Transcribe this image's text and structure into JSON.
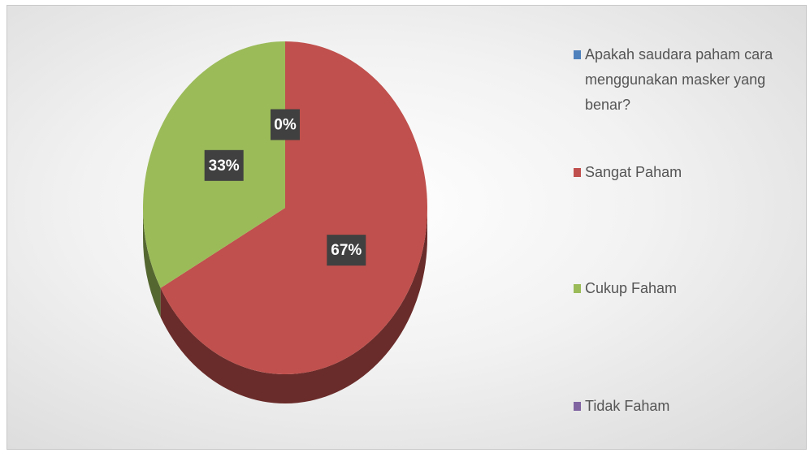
{
  "chart_data": {
    "type": "pie",
    "categories": [
      "Apakah saudara paham cara menggunakan masker yang benar?",
      "Sangat Paham",
      "Cukup Faham",
      "Tidak Faham"
    ],
    "values": [
      0,
      67,
      33,
      null
    ],
    "value_labels": [
      "0%",
      "67%",
      "33%",
      null
    ],
    "colors": [
      "#4f81bd",
      "#c0504d",
      "#9bbb59",
      "#8064a2"
    ],
    "legend": "right"
  }
}
